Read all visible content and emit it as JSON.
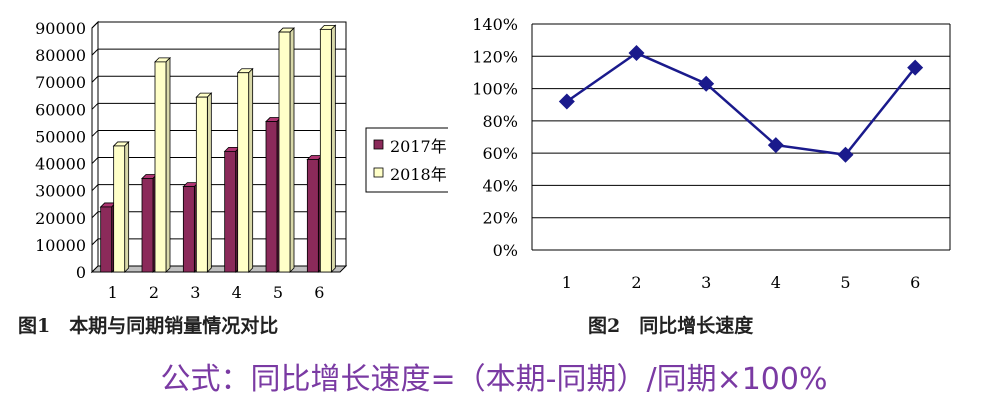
{
  "figure1": {
    "caption": "图1　本期与同期销量情况对比",
    "chart_data": {
      "type": "bar",
      "categories": [
        "1",
        "2",
        "3",
        "4",
        "5",
        "6"
      ],
      "series": [
        {
          "name": "2017年",
          "values": [
            24000,
            34500,
            31500,
            44500,
            55500,
            41500
          ],
          "color": "#8b2a5a"
        },
        {
          "name": "2018年",
          "values": [
            46500,
            77500,
            64500,
            73500,
            88500,
            89500
          ],
          "color": "#ffffc8"
        }
      ],
      "yticks": [
        "0",
        "10000",
        "20000",
        "30000",
        "40000",
        "50000",
        "60000",
        "70000",
        "80000",
        "90000"
      ],
      "ylim": [
        0,
        90000
      ],
      "grid": true,
      "legend": "right"
    }
  },
  "figure2": {
    "caption": "图2　同比增长速度",
    "chart_data": {
      "type": "line",
      "categories": [
        "1",
        "2",
        "3",
        "4",
        "5",
        "6"
      ],
      "series": [
        {
          "values": [
            92,
            122,
            103,
            65,
            59,
            113
          ],
          "color": "#1a1a8c"
        }
      ],
      "yticks": [
        "0%",
        "20%",
        "40%",
        "60%",
        "80%",
        "100%",
        "120%",
        "140%"
      ],
      "ylim": [
        0,
        140
      ],
      "grid": true
    }
  },
  "formula": "公式：同比增长速度=（本期-同期）/同期×100%"
}
